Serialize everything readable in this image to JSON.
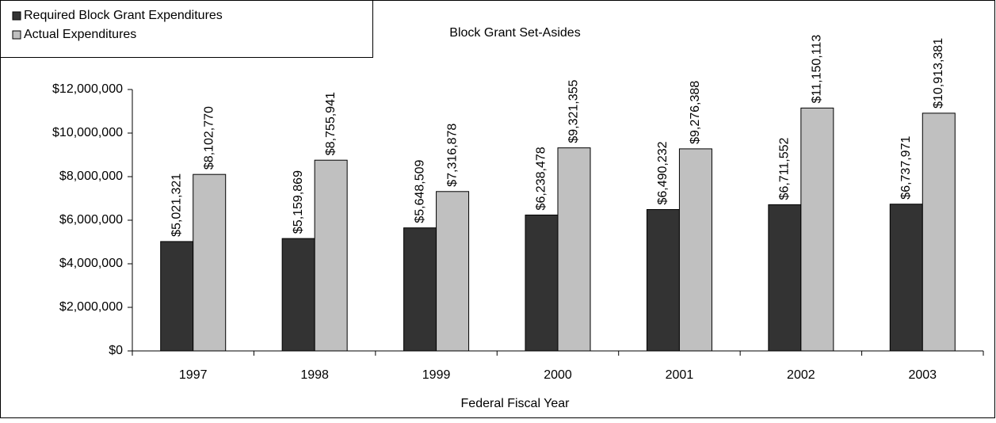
{
  "chart_data": {
    "type": "bar",
    "title": "Block Grant Set-Asides",
    "x_label": "Federal Fiscal Year",
    "categories": [
      "1997",
      "1998",
      "1999",
      "2000",
      "2001",
      "2002",
      "2003"
    ],
    "series": [
      {
        "name": "Required Block Grant Expenditures",
        "color": "#333333",
        "values": [
          5021321,
          5159869,
          5648509,
          6238478,
          6490232,
          6711552,
          6737971
        ],
        "value_labels": [
          "$5,021,321",
          "$5,159,869",
          "$5,648,509",
          "$6,238,478",
          "$6,490,232",
          "$6,711,552",
          "$6,737,971"
        ]
      },
      {
        "name": "Actual Expenditures",
        "color": "#c0c0c0",
        "values": [
          8102770,
          8755941,
          7316878,
          9321355,
          9276388,
          11150113,
          10913381
        ],
        "value_labels": [
          "$8,102,770",
          "$8,755,941",
          "$7,316,878",
          "$9,321,355",
          "$9,276,388",
          "$11,150,113",
          "$10,913,381"
        ]
      }
    ],
    "ylim": [
      0,
      12000000
    ],
    "yticks": [
      {
        "value": 0,
        "label": "$0"
      },
      {
        "value": 2000000,
        "label": "$2,000,000"
      },
      {
        "value": 4000000,
        "label": "$4,000,000"
      },
      {
        "value": 6000000,
        "label": "$6,000,000"
      },
      {
        "value": 8000000,
        "label": "$8,000,000"
      },
      {
        "value": 10000000,
        "label": "$10,000,000"
      },
      {
        "value": 12000000,
        "label": "$12,000,000"
      }
    ],
    "legend": "top-left",
    "grid": false
  }
}
